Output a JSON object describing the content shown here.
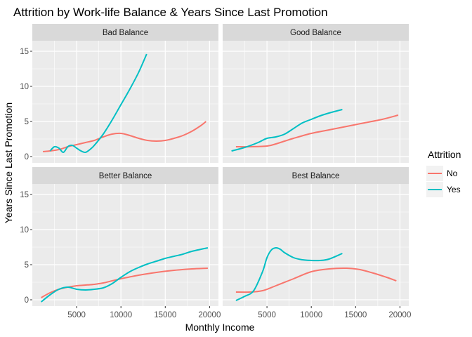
{
  "chart_data": {
    "type": "line",
    "title": "Attrition by Work-life Balance & Years Since Last Promotion",
    "xlabel": "Monthly Income",
    "ylabel": "Years Since Last Promotion",
    "xlim": [
      0,
      21000
    ],
    "ylim": [
      -0.9,
      16.5
    ],
    "x_ticks": [
      5000,
      10000,
      15000,
      20000
    ],
    "y_ticks": [
      0,
      5,
      10,
      15
    ],
    "grid": true,
    "legend": {
      "title": "Attrition",
      "placement": "right",
      "entries": [
        {
          "name": "No",
          "color": "#F8766D"
        },
        {
          "name": "Yes",
          "color": "#00BFC4"
        }
      ]
    },
    "panels": [
      {
        "label": "Bad Balance",
        "series": [
          {
            "name": "No",
            "color": "#F8766D",
            "x": [
              1200,
              2000,
              3000,
              4000,
              5000,
              6000,
              7000,
              8000,
              9000,
              10000,
              11000,
              12000,
              13000,
              14000,
              15000,
              16000,
              17000,
              18000,
              19000,
              19600
            ],
            "y": [
              0.7,
              0.8,
              1.0,
              1.4,
              1.7,
              2.0,
              2.3,
              2.8,
              3.2,
              3.3,
              3.0,
              2.6,
              2.3,
              2.2,
              2.3,
              2.6,
              3.0,
              3.6,
              4.4,
              5.0
            ]
          },
          {
            "name": "Yes",
            "color": "#00BFC4",
            "x": [
              2000,
              2500,
              3000,
              3500,
              4000,
              4500,
              5000,
              5500,
              6000,
              6500,
              7000,
              8000,
              9000,
              10000,
              11000,
              12000,
              12900
            ],
            "y": [
              0.8,
              1.4,
              1.2,
              0.6,
              1.4,
              1.6,
              1.2,
              0.8,
              0.6,
              1.0,
              1.6,
              3.2,
              5.2,
              7.4,
              9.6,
              12.0,
              14.6
            ]
          }
        ]
      },
      {
        "label": "Good Balance",
        "series": [
          {
            "name": "No",
            "color": "#F8766D",
            "x": [
              1500,
              3000,
              5000,
              6000,
              7000,
              8000,
              10000,
              12000,
              14000,
              16000,
              18000,
              19800
            ],
            "y": [
              1.4,
              1.4,
              1.5,
              1.8,
              2.2,
              2.6,
              3.3,
              3.8,
              4.3,
              4.8,
              5.3,
              5.9
            ]
          },
          {
            "name": "Yes",
            "color": "#00BFC4",
            "x": [
              1000,
              2500,
              4000,
              5000,
              6000,
              7000,
              8000,
              9000,
              10000,
              11000,
              12000,
              13500
            ],
            "y": [
              0.8,
              1.3,
              2.0,
              2.6,
              2.8,
              3.2,
              4.0,
              4.8,
              5.3,
              5.8,
              6.2,
              6.7
            ]
          }
        ]
      },
      {
        "label": "Better Balance",
        "series": [
          {
            "name": "No",
            "color": "#F8766D",
            "x": [
              1000,
              2000,
              3000,
              4000,
              5000,
              6000,
              7000,
              8000,
              9000,
              10000,
              12000,
              14000,
              16000,
              18000,
              19800
            ],
            "y": [
              0.3,
              1.0,
              1.5,
              1.8,
              2.0,
              2.1,
              2.2,
              2.4,
              2.7,
              3.0,
              3.5,
              3.9,
              4.2,
              4.4,
              4.5
            ]
          },
          {
            "name": "Yes",
            "color": "#00BFC4",
            "x": [
              1000,
              2000,
              3000,
              4000,
              5000,
              6000,
              7000,
              8000,
              9000,
              10000,
              11000,
              12000,
              13000,
              14000,
              15000,
              16000,
              17000,
              18000,
              19800
            ],
            "y": [
              -0.3,
              0.7,
              1.5,
              1.8,
              1.5,
              1.4,
              1.5,
              1.7,
              2.3,
              3.2,
              4.0,
              4.6,
              5.1,
              5.5,
              5.9,
              6.2,
              6.5,
              6.9,
              7.4
            ]
          }
        ]
      },
      {
        "label": "Best Balance",
        "series": [
          {
            "name": "No",
            "color": "#F8766D",
            "x": [
              1500,
              3000,
              4500,
              6000,
              8000,
              10000,
              12000,
              14000,
              15500,
              17000,
              18500,
              19600
            ],
            "y": [
              1.1,
              1.1,
              1.3,
              2.0,
              3.0,
              4.0,
              4.4,
              4.5,
              4.3,
              3.8,
              3.2,
              2.7
            ]
          },
          {
            "name": "Yes",
            "color": "#00BFC4",
            "x": [
              1500,
              2500,
              3500,
              4500,
              5000,
              5500,
              6000,
              6500,
              7000,
              8000,
              9000,
              10000,
              11000,
              12000,
              13500
            ],
            "y": [
              -0.1,
              0.5,
              1.3,
              4.0,
              6.0,
              7.1,
              7.4,
              7.2,
              6.7,
              6.0,
              5.7,
              5.6,
              5.6,
              5.8,
              6.6
            ]
          }
        ]
      }
    ]
  }
}
